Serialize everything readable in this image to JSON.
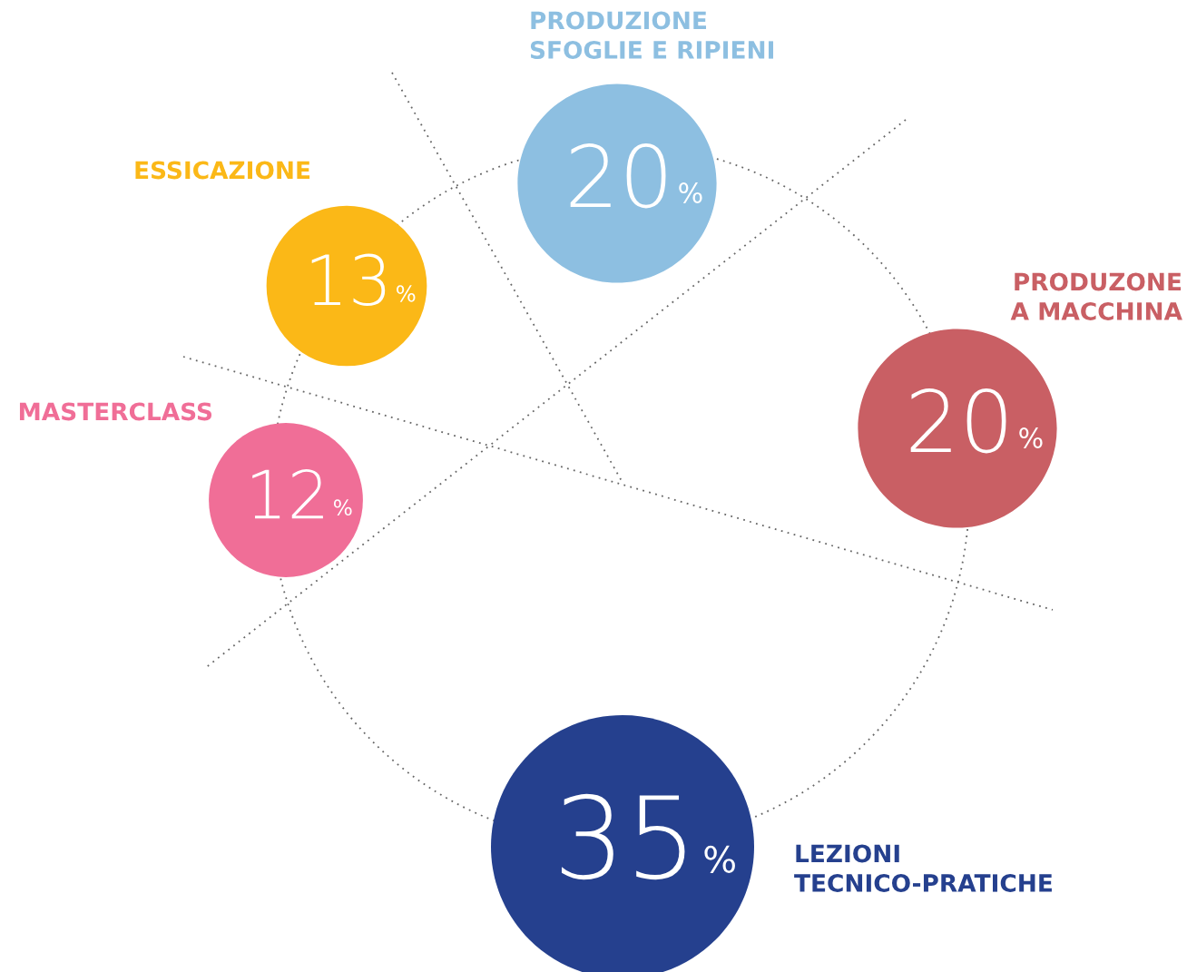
{
  "chart_data": {
    "type": "other",
    "categories": [
      "PRODUZIONE\nSFOGLIE E RIPIENI",
      "PRODUZONE\nA MACCHINA",
      "LEZIONI\nTECNICO-PRATICHE",
      "MASTERCLASS",
      "ESSICAZIONE"
    ],
    "values": [
      20,
      20,
      35,
      12,
      13
    ],
    "value_labels": [
      "20%",
      "20%",
      "35%",
      "12%",
      "13%"
    ],
    "colors": [
      "#8dbfe1",
      "#c95f64",
      "#25408e",
      "#f06e97",
      "#fbb817"
    ]
  }
}
